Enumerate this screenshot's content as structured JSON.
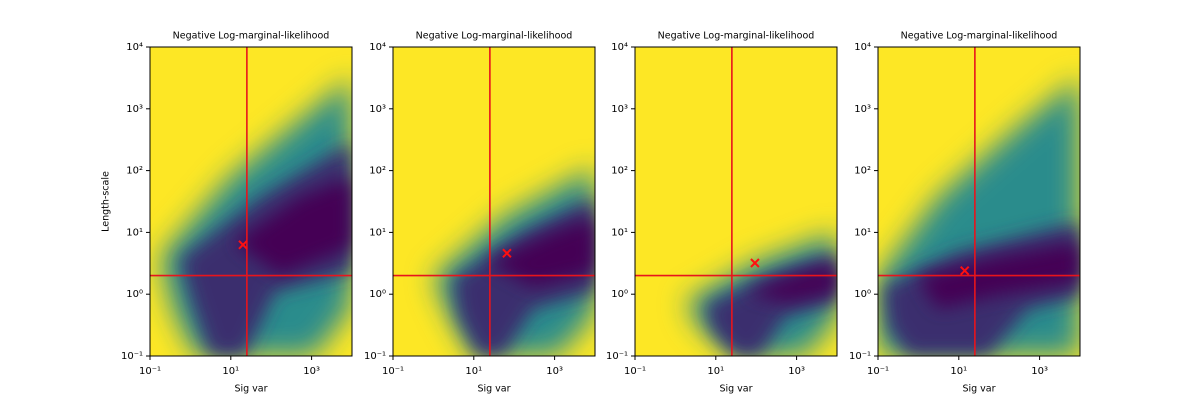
{
  "chart_data": [
    {
      "type": "heatmap",
      "title": "Negative Log-marginal-likelihood",
      "xlabel": "Sig var",
      "ylabel": "Length-scale",
      "xscale": "log",
      "yscale": "log",
      "xlim": [
        0.1,
        10000
      ],
      "ylim": [
        0.1,
        10000
      ],
      "xticks": [
        {
          "value": 0.1,
          "label": "10⁻¹"
        },
        {
          "value": 10,
          "label": "10¹"
        },
        {
          "value": 1000,
          "label": "10³"
        }
      ],
      "yticks": [
        {
          "value": 0.1,
          "label": "10⁻¹"
        },
        {
          "value": 1,
          "label": "10⁰"
        },
        {
          "value": 10,
          "label": "10¹"
        },
        {
          "value": 100,
          "label": "10²"
        },
        {
          "value": 1000,
          "label": "10³"
        },
        {
          "value": 10000,
          "label": "10⁴"
        }
      ],
      "vline": 25,
      "hline": 2,
      "line_color": "#e8141c",
      "marker": {
        "x": 20,
        "y": 6.3
      },
      "marker_color": "#ff1010"
    },
    {
      "type": "heatmap",
      "title": "Negative Log-marginal-likelihood",
      "xlabel": "Sig var",
      "xscale": "log",
      "yscale": "log",
      "xlim": [
        0.1,
        10000
      ],
      "ylim": [
        0.1,
        10000
      ],
      "xticks": [
        {
          "value": 0.1,
          "label": "10⁻¹"
        },
        {
          "value": 10,
          "label": "10¹"
        },
        {
          "value": 1000,
          "label": "10³"
        }
      ],
      "yticks": [
        {
          "value": 0.1,
          "label": "10⁻¹"
        },
        {
          "value": 1,
          "label": "10⁰"
        },
        {
          "value": 10,
          "label": "10¹"
        },
        {
          "value": 100,
          "label": "10²"
        },
        {
          "value": 1000,
          "label": "10³"
        },
        {
          "value": 10000,
          "label": "10⁴"
        }
      ],
      "vline": 25,
      "hline": 2,
      "line_color": "#e8141c",
      "marker": {
        "x": 66,
        "y": 4.6
      },
      "marker_color": "#ff1010"
    },
    {
      "type": "heatmap",
      "title": "Negative Log-marginal-likelihood",
      "xlabel": "Sig var",
      "xscale": "log",
      "yscale": "log",
      "xlim": [
        0.1,
        10000
      ],
      "ylim": [
        0.1,
        10000
      ],
      "xticks": [
        {
          "value": 0.1,
          "label": "10⁻¹"
        },
        {
          "value": 10,
          "label": "10¹"
        },
        {
          "value": 1000,
          "label": "10³"
        }
      ],
      "yticks": [
        {
          "value": 0.1,
          "label": "10⁻¹"
        },
        {
          "value": 1,
          "label": "10⁰"
        },
        {
          "value": 10,
          "label": "10¹"
        },
        {
          "value": 100,
          "label": "10²"
        },
        {
          "value": 1000,
          "label": "10³"
        },
        {
          "value": 10000,
          "label": "10⁴"
        }
      ],
      "vline": 25,
      "hline": 2,
      "line_color": "#e8141c",
      "marker": {
        "x": 93,
        "y": 3.2
      },
      "marker_color": "#ff1010"
    },
    {
      "type": "heatmap",
      "title": "Negative Log-marginal-likelihood",
      "xlabel": "Sig var",
      "xscale": "log",
      "yscale": "log",
      "xlim": [
        0.1,
        10000
      ],
      "ylim": [
        0.1,
        10000
      ],
      "xticks": [
        {
          "value": 0.1,
          "label": "10⁻¹"
        },
        {
          "value": 10,
          "label": "10¹"
        },
        {
          "value": 1000,
          "label": "10³"
        }
      ],
      "yticks": [
        {
          "value": 0.1,
          "label": "10⁻¹"
        },
        {
          "value": 1,
          "label": "10⁰"
        },
        {
          "value": 10,
          "label": "10¹"
        },
        {
          "value": 100,
          "label": "10²"
        },
        {
          "value": 1000,
          "label": "10³"
        },
        {
          "value": 10000,
          "label": "10⁴"
        }
      ],
      "vline": 25,
      "hline": 2,
      "line_color": "#e8141c",
      "marker": {
        "x": 14,
        "y": 2.4
      },
      "marker_color": "#ff1010"
    }
  ]
}
